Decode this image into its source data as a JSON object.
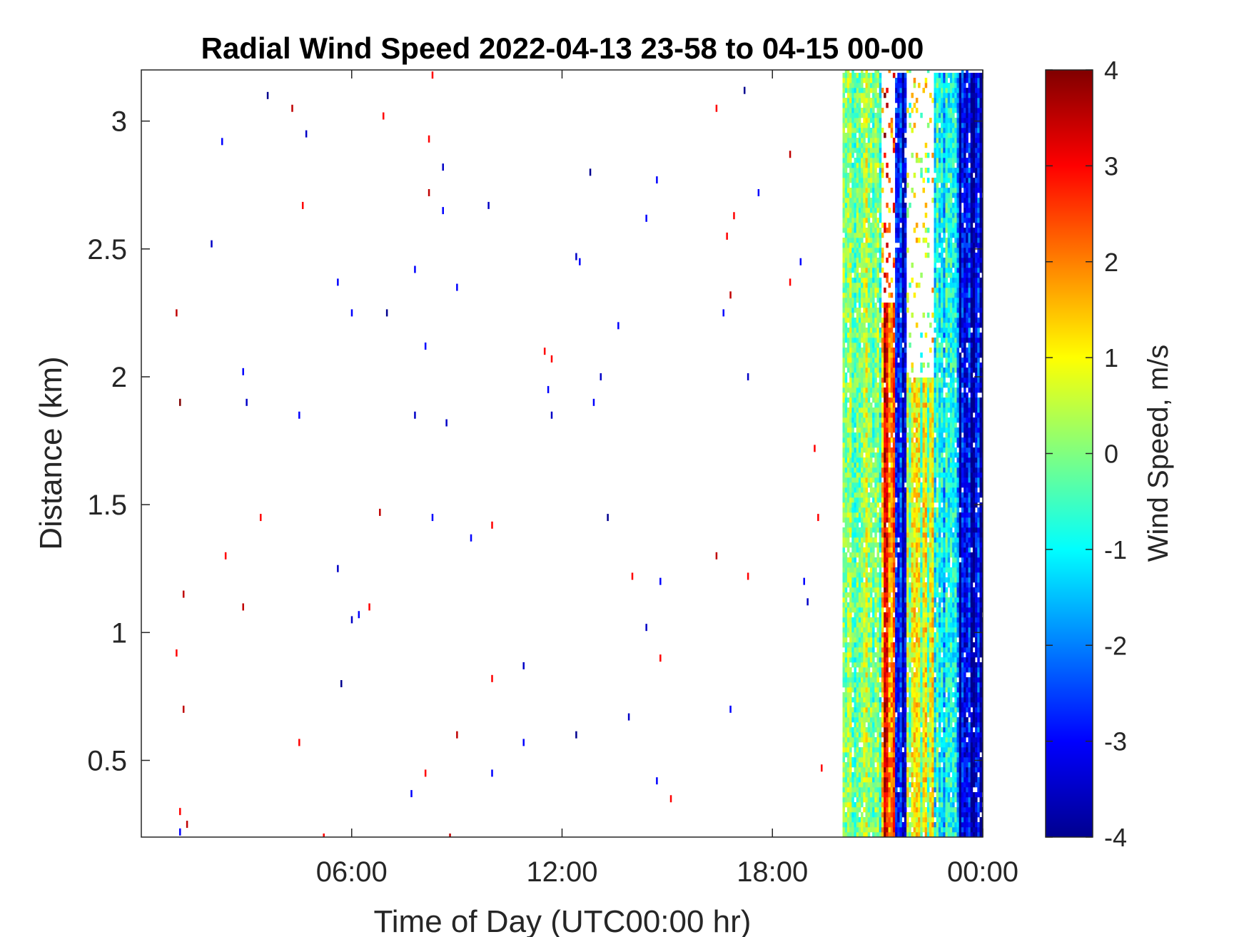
{
  "chart_data": {
    "type": "heatmap",
    "title": "Radial Wind Speed 2022-04-13 23-58 to 04-15 00-00",
    "xlabel": "Time of Day (UTC00:00 hr)",
    "ylabel": "Distance (km)",
    "x_unit": "hours",
    "xlim": [
      0,
      24
    ],
    "ylim": [
      0.2,
      3.2
    ],
    "x_ticks": [
      {
        "value": 6,
        "label": "06:00"
      },
      {
        "value": 12,
        "label": "12:00"
      },
      {
        "value": 18,
        "label": "18:00"
      },
      {
        "value": 24,
        "label": "00:00"
      }
    ],
    "y_ticks": [
      {
        "value": 0.5,
        "label": "0.5"
      },
      {
        "value": 1,
        "label": "1"
      },
      {
        "value": 1.5,
        "label": "1.5"
      },
      {
        "value": 2,
        "label": "2"
      },
      {
        "value": 2.5,
        "label": "2.5"
      },
      {
        "value": 3,
        "label": "3"
      }
    ],
    "colorbar": {
      "label": "Wind Speed, m/s",
      "colormap": "jet",
      "range": [
        -4,
        4
      ],
      "ticks": [
        "4",
        "3",
        "2",
        "1",
        "0",
        "-1",
        "-2",
        "-3",
        "-4"
      ]
    },
    "grid": false,
    "dense_region": {
      "x_start": 20.0,
      "x_end": 24.0,
      "segments": [
        {
          "x_start": 20.0,
          "x_end": 21.1,
          "mean_speed": -0.2,
          "y_top": 3.2
        },
        {
          "x_start": 21.1,
          "x_end": 21.5,
          "mean_speed": 2.5,
          "y_top": 2.3
        },
        {
          "x_start": 21.5,
          "x_end": 21.8,
          "mean_speed": -3.0,
          "y_top": 3.2
        },
        {
          "x_start": 21.8,
          "x_end": 22.6,
          "mean_speed": 0.3,
          "y_top": 2.0
        },
        {
          "x_start": 22.6,
          "x_end": 23.3,
          "mean_speed": -1.2,
          "y_top": 3.2
        },
        {
          "x_start": 23.3,
          "x_end": 24.0,
          "mean_speed": -3.3,
          "y_top": 3.2
        }
      ]
    },
    "sparse_points": [
      {
        "x": 1.0,
        "y": 2.25,
        "v": 3.5
      },
      {
        "x": 1.1,
        "y": 1.9,
        "v": 4
      },
      {
        "x": 1.2,
        "y": 1.15,
        "v": 3.5
      },
      {
        "x": 1.0,
        "y": 0.92,
        "v": 3
      },
      {
        "x": 1.2,
        "y": 0.7,
        "v": 3.5
      },
      {
        "x": 1.1,
        "y": 0.3,
        "v": 3
      },
      {
        "x": 2.0,
        "y": 2.52,
        "v": -3.5
      },
      {
        "x": 2.3,
        "y": 2.92,
        "v": -3
      },
      {
        "x": 2.4,
        "y": 1.3,
        "v": 3
      },
      {
        "x": 2.9,
        "y": 2.02,
        "v": -3
      },
      {
        "x": 3.0,
        "y": 1.9,
        "v": -3.5
      },
      {
        "x": 2.9,
        "y": 1.1,
        "v": 3.5
      },
      {
        "x": 3.4,
        "y": 1.45,
        "v": 3
      },
      {
        "x": 3.6,
        "y": 3.1,
        "v": -4
      },
      {
        "x": 4.3,
        "y": 3.05,
        "v": 3.5
      },
      {
        "x": 4.5,
        "y": 1.85,
        "v": -3
      },
      {
        "x": 4.6,
        "y": 2.67,
        "v": 3
      },
      {
        "x": 4.7,
        "y": 2.95,
        "v": -3.5
      },
      {
        "x": 4.5,
        "y": 0.57,
        "v": 3
      },
      {
        "x": 5.6,
        "y": 2.37,
        "v": -3
      },
      {
        "x": 5.6,
        "y": 1.25,
        "v": -3.5
      },
      {
        "x": 5.7,
        "y": 0.8,
        "v": -4
      },
      {
        "x": 6.0,
        "y": 2.25,
        "v": -3
      },
      {
        "x": 6.0,
        "y": 1.05,
        "v": -3.5
      },
      {
        "x": 6.2,
        "y": 1.07,
        "v": -3
      },
      {
        "x": 6.5,
        "y": 1.1,
        "v": 3
      },
      {
        "x": 6.8,
        "y": 1.47,
        "v": 3.5
      },
      {
        "x": 6.9,
        "y": 3.02,
        "v": 3
      },
      {
        "x": 7.0,
        "y": 2.25,
        "v": -4
      },
      {
        "x": 7.8,
        "y": 2.42,
        "v": -3
      },
      {
        "x": 7.8,
        "y": 1.85,
        "v": -3.5
      },
      {
        "x": 7.7,
        "y": 0.37,
        "v": -3
      },
      {
        "x": 8.1,
        "y": 0.45,
        "v": 3
      },
      {
        "x": 8.1,
        "y": 2.12,
        "v": -3
      },
      {
        "x": 8.2,
        "y": 2.72,
        "v": 3.5
      },
      {
        "x": 8.2,
        "y": 2.93,
        "v": 3
      },
      {
        "x": 8.3,
        "y": 1.45,
        "v": -3
      },
      {
        "x": 8.6,
        "y": 2.82,
        "v": -3.5
      },
      {
        "x": 8.6,
        "y": 2.65,
        "v": -3
      },
      {
        "x": 8.7,
        "y": 1.82,
        "v": -3.5
      },
      {
        "x": 9.0,
        "y": 2.35,
        "v": -3
      },
      {
        "x": 9.0,
        "y": 0.6,
        "v": 3.5
      },
      {
        "x": 9.4,
        "y": 1.37,
        "v": -3
      },
      {
        "x": 9.9,
        "y": 2.67,
        "v": -3.5
      },
      {
        "x": 10.0,
        "y": 1.42,
        "v": 3
      },
      {
        "x": 10.0,
        "y": 0.82,
        "v": 3
      },
      {
        "x": 10.0,
        "y": 0.45,
        "v": -3
      },
      {
        "x": 10.9,
        "y": 0.87,
        "v": -3.5
      },
      {
        "x": 10.9,
        "y": 0.57,
        "v": -3
      },
      {
        "x": 11.5,
        "y": 2.1,
        "v": 3
      },
      {
        "x": 11.6,
        "y": 1.95,
        "v": -3
      },
      {
        "x": 11.7,
        "y": 1.85,
        "v": -3.5
      },
      {
        "x": 11.7,
        "y": 2.07,
        "v": 3
      },
      {
        "x": 12.4,
        "y": 2.47,
        "v": -3.5
      },
      {
        "x": 12.5,
        "y": 2.45,
        "v": -3
      },
      {
        "x": 12.4,
        "y": 0.6,
        "v": -4
      },
      {
        "x": 12.8,
        "y": 2.8,
        "v": -4
      },
      {
        "x": 12.9,
        "y": 1.9,
        "v": -3
      },
      {
        "x": 13.1,
        "y": 2.0,
        "v": -3.5
      },
      {
        "x": 13.3,
        "y": 1.45,
        "v": -4
      },
      {
        "x": 13.6,
        "y": 2.2,
        "v": -3
      },
      {
        "x": 13.9,
        "y": 0.67,
        "v": -3.5
      },
      {
        "x": 14.0,
        "y": 1.22,
        "v": 3
      },
      {
        "x": 14.4,
        "y": 2.62,
        "v": -3
      },
      {
        "x": 14.4,
        "y": 1.02,
        "v": -3.5
      },
      {
        "x": 14.7,
        "y": 2.77,
        "v": -3
      },
      {
        "x": 14.8,
        "y": 1.2,
        "v": -3
      },
      {
        "x": 14.8,
        "y": 0.9,
        "v": 3
      },
      {
        "x": 14.7,
        "y": 0.42,
        "v": -3
      },
      {
        "x": 15.1,
        "y": 0.35,
        "v": 3
      },
      {
        "x": 16.4,
        "y": 3.05,
        "v": 3
      },
      {
        "x": 16.4,
        "y": 1.3,
        "v": 3.5
      },
      {
        "x": 16.6,
        "y": 2.25,
        "v": -3
      },
      {
        "x": 16.7,
        "y": 2.55,
        "v": 3
      },
      {
        "x": 16.8,
        "y": 2.32,
        "v": 3.5
      },
      {
        "x": 16.9,
        "y": 2.63,
        "v": 3
      },
      {
        "x": 16.8,
        "y": 0.7,
        "v": -3
      },
      {
        "x": 17.2,
        "y": 3.12,
        "v": -4
      },
      {
        "x": 17.3,
        "y": 2.0,
        "v": -3.5
      },
      {
        "x": 17.3,
        "y": 1.22,
        "v": 3
      },
      {
        "x": 17.6,
        "y": 2.72,
        "v": -3
      },
      {
        "x": 18.5,
        "y": 2.87,
        "v": 3.5
      },
      {
        "x": 18.5,
        "y": 2.37,
        "v": 3
      },
      {
        "x": 18.8,
        "y": 2.45,
        "v": -3
      },
      {
        "x": 18.9,
        "y": 1.2,
        "v": -3
      },
      {
        "x": 19.0,
        "y": 1.12,
        "v": -3.5
      },
      {
        "x": 19.2,
        "y": 1.72,
        "v": 3
      },
      {
        "x": 19.3,
        "y": 1.45,
        "v": 3
      },
      {
        "x": 19.4,
        "y": 0.47,
        "v": 3
      },
      {
        "x": 1.3,
        "y": 0.25,
        "v": 3.5
      },
      {
        "x": 1.1,
        "y": 0.22,
        "v": -3
      },
      {
        "x": 5.2,
        "y": 0.2,
        "v": 3
      },
      {
        "x": 8.8,
        "y": 0.2,
        "v": 3.5
      },
      {
        "x": 8.3,
        "y": 3.18,
        "v": 3
      }
    ]
  }
}
